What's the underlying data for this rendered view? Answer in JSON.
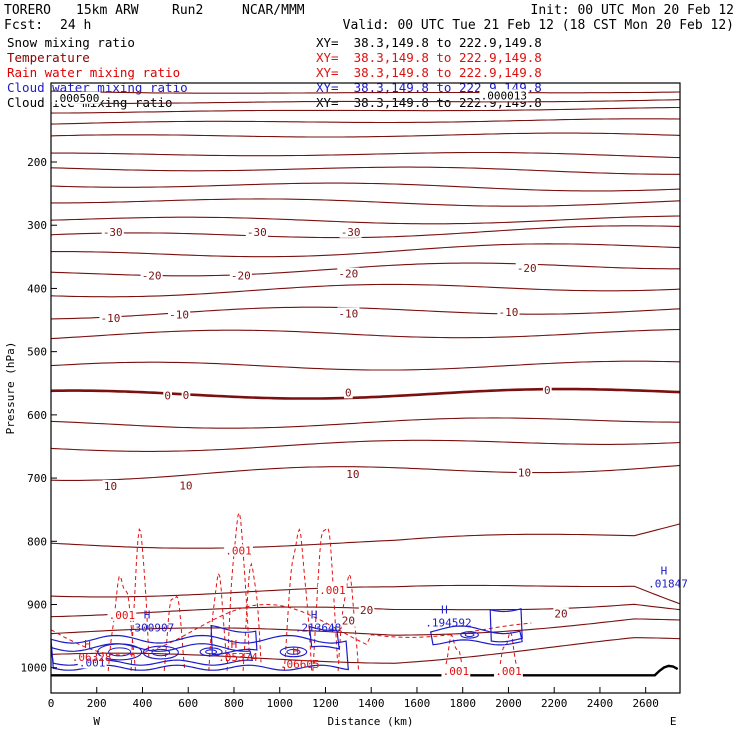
{
  "header": {
    "model": "TORERO",
    "resolution": "15km ARW",
    "run": "Run2",
    "org": "NCAR/MMM",
    "init": "Init: 00 UTC Mon 20 Feb 12",
    "fcst_label": "Fcst:",
    "fcst_value": "24 h",
    "valid": "Valid: 00 UTC Tue 21 Feb 12 (18 CST Mon 20 Feb 12)"
  },
  "fields": [
    {
      "name": "Snow mixing ratio",
      "xy": "XY=  38.3,149.8 to 222.9,149.8",
      "color": "#000000"
    },
    {
      "name": "Temperature",
      "xy": "XY=  38.3,149.8 to 222.9,149.8",
      "color": "#8b0000"
    },
    {
      "name": "Rain water mixing ratio",
      "xy": "XY=  38.3,149.8 to 222.9,149.8",
      "color": "#e00000"
    },
    {
      "name": "Cloud water mixing ratio",
      "xy": "XY=  38.3,149.8 to 222.9,149.8",
      "color": "#1c1cc8"
    },
    {
      "name": "Cloud ice mixing ratio",
      "xy": "XY=  38.3,149.8 to 222.9,149.8",
      "color": "#000000"
    }
  ],
  "colors": {
    "temperature": "#7a1010",
    "rain": "#e01010",
    "cloud_water": "#1c1cc8",
    "ground": "#000000"
  },
  "chart_data": {
    "type": "cross-section contour",
    "xlabel": "Distance (km)",
    "ylabel": "Pressure (hPa)",
    "xlim": [
      0,
      2750
    ],
    "ylim": [
      1040,
      75
    ],
    "x_ticks": [
      "0",
      "200",
      "400",
      "600",
      "800",
      "1000",
      "1200",
      "1400",
      "1600",
      "1800",
      "2000",
      "2200",
      "2400",
      "2600"
    ],
    "x_tick_values": [
      0,
      200,
      400,
      600,
      800,
      1000,
      1200,
      1400,
      1600,
      1800,
      2000,
      2200,
      2400,
      2600
    ],
    "y_ticks": [
      "200",
      "300",
      "400",
      "500",
      "600",
      "700",
      "800",
      "900",
      "1000"
    ],
    "y_tick_values": [
      200,
      300,
      400,
      500,
      600,
      700,
      800,
      900,
      1000
    ],
    "west_label": "W",
    "east_label": "E",
    "temperature_contours": [
      {
        "label": "-30",
        "pressure": 315
      },
      {
        "label": "-20",
        "pressure": 370
      },
      {
        "label": "-10",
        "pressure": 445
      },
      {
        "label": "0",
        "pressure": 565
      },
      {
        "label": "10",
        "pressure": 685
      },
      {
        "label": "20",
        "pressure": 912
      }
    ],
    "temperature_labels": [
      {
        "text": "-30",
        "x": 270,
        "p": 312
      },
      {
        "text": "-30",
        "x": 900,
        "p": 312
      },
      {
        "text": "-30",
        "x": 1310,
        "p": 312
      },
      {
        "text": "-20",
        "x": 440,
        "p": 381
      },
      {
        "text": "-20",
        "x": 830,
        "p": 381
      },
      {
        "text": "-20",
        "x": 1300,
        "p": 378
      },
      {
        "text": "-20",
        "x": 2080,
        "p": 369
      },
      {
        "text": "-10",
        "x": 260,
        "p": 448
      },
      {
        "text": "-10",
        "x": 560,
        "p": 443
      },
      {
        "text": "-10",
        "x": 1300,
        "p": 441
      },
      {
        "text": "-10",
        "x": 2000,
        "p": 439
      },
      {
        "text": "0",
        "x": 510,
        "p": 571
      },
      {
        "text": "0",
        "x": 590,
        "p": 570
      },
      {
        "text": "0",
        "x": 1300,
        "p": 566
      },
      {
        "text": "0",
        "x": 2170,
        "p": 562
      },
      {
        "text": "10",
        "x": 260,
        "p": 714
      },
      {
        "text": "10",
        "x": 590,
        "p": 713
      },
      {
        "text": "10",
        "x": 1320,
        "p": 695
      },
      {
        "text": "10",
        "x": 2070,
        "p": 693
      },
      {
        "text": "20",
        "x": 1300,
        "p": 927
      },
      {
        "text": "20",
        "x": 1380,
        "p": 910
      },
      {
        "text": "20",
        "x": 2230,
        "p": 916
      }
    ],
    "top_labels": [
      {
        "text": ".000500",
        "x": 110,
        "p": 100
      },
      {
        "text": ".000013",
        "x": 1980,
        "p": 96
      }
    ],
    "rain_labels": [
      {
        "text": ".001",
        "x": 820,
        "p": 816
      },
      {
        "text": ".001",
        "x": 1230,
        "p": 879
      },
      {
        "text": ".001",
        "x": 310,
        "p": 918
      },
      {
        "text": ".001",
        "x": 1770,
        "p": 1007
      },
      {
        "text": ".001",
        "x": 2000,
        "p": 1007
      }
    ],
    "extrema_labels": [
      {
        "mark": "H",
        "value": ".300907",
        "x": 420,
        "p": 938,
        "color": "cloud_water"
      },
      {
        "mark": "H",
        "value": ".213648",
        "x": 1150,
        "p": 938,
        "color": "cloud_water"
      },
      {
        "mark": "H",
        "value": ".194592",
        "x": 1720,
        "p": 930,
        "color": "cloud_water"
      },
      {
        "mark": "H",
        "value": ".01847",
        "x": 2680,
        "p": 868,
        "color": "cloud_water"
      },
      {
        "mark": "H",
        "value": ".06328",
        "x": 160,
        "p": 985,
        "color": "rain"
      },
      {
        "mark": "H",
        "value": ".05374",
        "x": 800,
        "p": 985,
        "color": "rain"
      },
      {
        "mark": "H",
        "value": ".06605",
        "x": 1070,
        "p": 996,
        "color": "rain"
      }
    ],
    "cloud_water_lower_label": {
      "text": ".001",
      "x": 180,
      "p": 993
    }
  }
}
